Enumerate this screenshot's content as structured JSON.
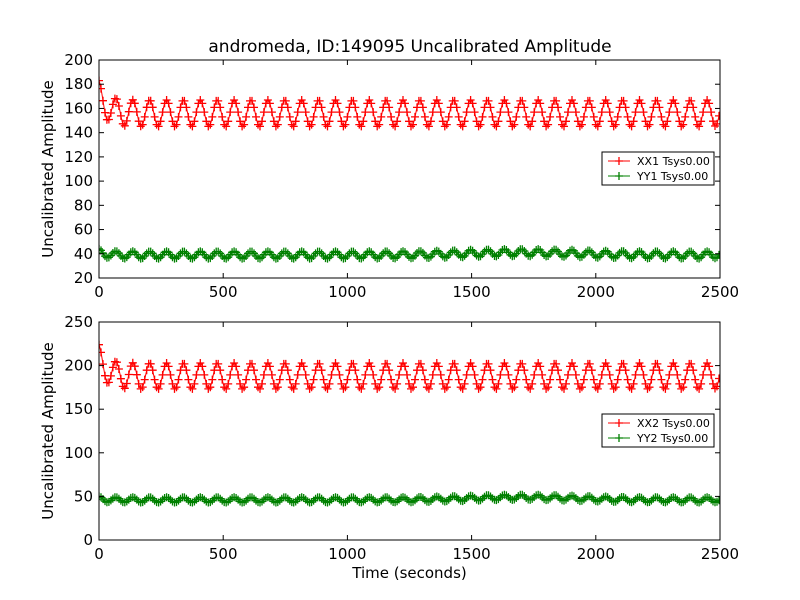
{
  "figure_title": "andromeda, ID:149095 Uncalibrated Amplitude",
  "chart_data": [
    {
      "type": "line",
      "title": "andromeda, ID:149095 Uncalibrated Amplitude",
      "xlabel": "",
      "ylabel": "Uncalibrated Amplitude",
      "xlim": [
        0,
        2500
      ],
      "ylim": [
        20,
        200
      ],
      "xticks": [
        0,
        500,
        1000,
        1500,
        2000,
        2500
      ],
      "yticks": [
        20,
        40,
        60,
        80,
        100,
        120,
        140,
        160,
        180,
        200
      ],
      "legend_position": "center-right",
      "marker": "+",
      "oscillation_period_seconds": 68,
      "series": [
        {
          "name": "XX1 Tsys0.00",
          "color": "#ff0000",
          "start_value": 183,
          "base_value": 156,
          "amplitude": 11,
          "end_value": 147
        },
        {
          "name": "YY1 Tsys0.00",
          "color": "#008000",
          "start_value": 44,
          "base_value": 39,
          "amplitude": 3,
          "peak_value": 44,
          "end_value": 38
        }
      ]
    },
    {
      "type": "line",
      "title": "",
      "xlabel": "Time (seconds)",
      "ylabel": "Uncalibrated Amplitude",
      "xlim": [
        0,
        2500
      ],
      "ylim": [
        0,
        250
      ],
      "xticks": [
        0,
        500,
        1000,
        1500,
        2000,
        2500
      ],
      "yticks": [
        0,
        50,
        100,
        150,
        200,
        250
      ],
      "legend_position": "center-right",
      "marker": "+",
      "oscillation_period_seconds": 68,
      "series": [
        {
          "name": "XX2 Tsys0.00",
          "color": "#ff0000",
          "start_value": 224,
          "base_value": 188,
          "amplitude": 15,
          "end_value": 176
        },
        {
          "name": "YY2 Tsys0.00",
          "color": "#008000",
          "start_value": 50,
          "base_value": 46,
          "amplitude": 3,
          "peak_value": 52,
          "end_value": 44
        }
      ]
    }
  ]
}
